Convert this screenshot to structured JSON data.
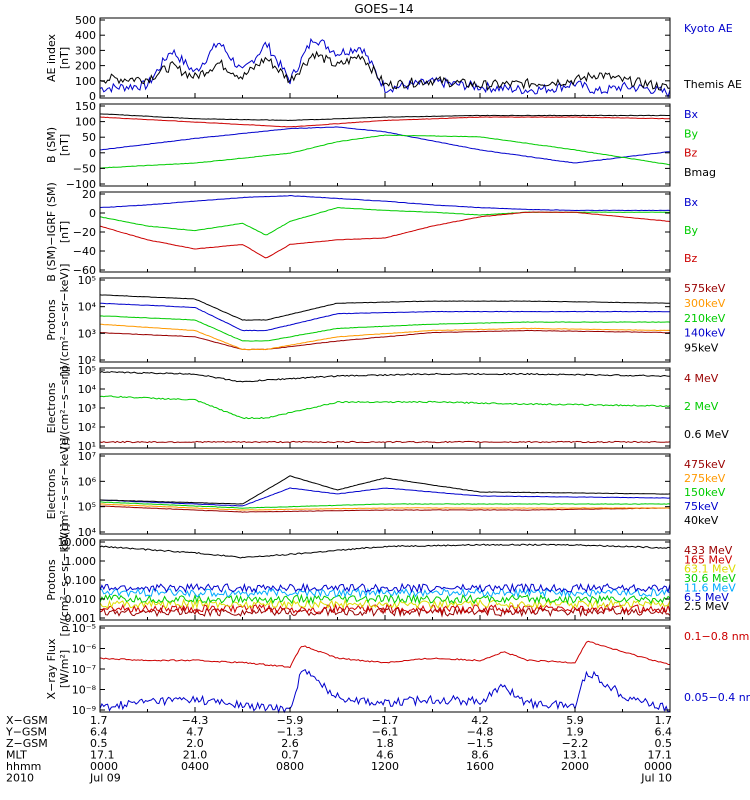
{
  "title": "GOES−14",
  "colors": {
    "black": "#000000",
    "blue": "#0000cc",
    "red": "#cc0000",
    "green": "#00cc00",
    "orange": "#ff9900",
    "cyan": "#00aaff",
    "yellow": "#dddd00",
    "darkred": "#990000"
  },
  "chart_data": [
    {
      "type": "line",
      "panel": "ae",
      "ylabel": "AE index",
      "yunit": "[nT]",
      "ylim": [
        0,
        500
      ],
      "yscale": "linear",
      "yticks": [
        "500",
        "400",
        "300",
        "200",
        "100",
        "0"
      ],
      "series": [
        {
          "name": "Kyoto AE",
          "color": "blue",
          "x": [
            0,
            2,
            3,
            4,
            5,
            6,
            7,
            8,
            9,
            10,
            11,
            12,
            14,
            16,
            18,
            19,
            20,
            21,
            22,
            23,
            24
          ],
          "values": [
            60,
            80,
            300,
            160,
            350,
            160,
            340,
            110,
            380,
            280,
            320,
            60,
            100,
            70,
            50,
            60,
            90,
            40,
            70,
            60,
            30
          ]
        },
        {
          "name": "Themis AE",
          "color": "black",
          "x": [
            0,
            2,
            3,
            4,
            5,
            6,
            7,
            8,
            9,
            10,
            11,
            12,
            14,
            16,
            18,
            19,
            20,
            21,
            22,
            23,
            24
          ],
          "values": [
            120,
            120,
            200,
            130,
            220,
            130,
            250,
            110,
            280,
            200,
            270,
            80,
            110,
            80,
            90,
            100,
            110,
            150,
            110,
            90,
            60
          ]
        }
      ]
    },
    {
      "type": "line",
      "panel": "b_sm",
      "ylabel": "B (SM)",
      "yunit": "[nT]",
      "ylim": [
        -110,
        140
      ],
      "yscale": "linear",
      "yticks": [
        "150",
        "100",
        "50",
        "0",
        "−50",
        "−100"
      ],
      "series": [
        {
          "name": "Bx",
          "color": "blue",
          "x": [
            0,
            4,
            8,
            10,
            12,
            16,
            20,
            24
          ],
          "values": [
            0,
            35,
            65,
            70,
            55,
            0,
            -40,
            -5
          ]
        },
        {
          "name": "By",
          "color": "green",
          "x": [
            0,
            4,
            8,
            10,
            12,
            16,
            20,
            24
          ],
          "values": [
            -55,
            -40,
            -10,
            25,
            45,
            40,
            0,
            -45
          ]
        },
        {
          "name": "Bz",
          "color": "red",
          "x": [
            0,
            4,
            8,
            10,
            12,
            16,
            20,
            24
          ],
          "values": [
            100,
            85,
            70,
            80,
            90,
            100,
            100,
            95
          ]
        },
        {
          "name": "Bmag",
          "color": "black",
          "x": [
            0,
            4,
            8,
            10,
            12,
            16,
            20,
            24
          ],
          "values": [
            110,
            95,
            90,
            95,
            100,
            105,
            105,
            105
          ]
        }
      ]
    },
    {
      "type": "line",
      "panel": "b_igrf",
      "ylabel": "B (SM)−IGRF (SM)",
      "yunit": "[nT]",
      "ylim": [
        -65,
        22
      ],
      "yscale": "linear",
      "yticks": [
        "20",
        "0",
        "−20",
        "−40",
        "−60"
      ],
      "series": [
        {
          "name": "Bx",
          "color": "blue",
          "x": [
            0,
            2,
            4,
            6,
            8,
            10,
            12,
            14,
            16,
            18,
            20,
            22,
            24
          ],
          "values": [
            5,
            8,
            12,
            16,
            18,
            15,
            12,
            8,
            5,
            3,
            2,
            2,
            2
          ]
        },
        {
          "name": "By",
          "color": "green",
          "x": [
            0,
            2,
            4,
            6,
            7,
            8,
            10,
            12,
            14,
            16,
            18,
            20,
            24
          ],
          "values": [
            -5,
            -15,
            -20,
            -12,
            -25,
            -10,
            5,
            2,
            0,
            -3,
            0,
            0,
            0
          ]
        },
        {
          "name": "Bz",
          "color": "red",
          "x": [
            0,
            2,
            4,
            6,
            7,
            8,
            10,
            12,
            14,
            16,
            18,
            20,
            24
          ],
          "values": [
            -15,
            -30,
            -40,
            -35,
            -50,
            -35,
            -30,
            -28,
            -15,
            -5,
            0,
            0,
            -10
          ]
        }
      ]
    },
    {
      "type": "line",
      "panel": "protons_low",
      "ylabel": "Protons",
      "yunit": "[p/(cm²−s−sr−keV)]",
      "ylim": [
        1,
        5
      ],
      "yscale": "log",
      "yticks": [
        "10⁵",
        "10⁴",
        "10³",
        "10²"
      ],
      "series": [
        {
          "name": "575keV",
          "color": "darkred",
          "x": [
            0,
            4,
            6,
            7,
            10,
            14,
            18,
            24
          ],
          "values": [
            2.4,
            2.2,
            1.6,
            1.6,
            2.0,
            2.4,
            2.5,
            2.4
          ]
        },
        {
          "name": "300keV",
          "color": "orange",
          "x": [
            0,
            4,
            6,
            7,
            10,
            14,
            18,
            24
          ],
          "values": [
            2.8,
            2.5,
            1.6,
            1.6,
            2.2,
            2.5,
            2.6,
            2.5
          ]
        },
        {
          "name": "210keV",
          "color": "green",
          "x": [
            0,
            4,
            6,
            7,
            10,
            14,
            18,
            24
          ],
          "values": [
            3.2,
            3.0,
            2.0,
            2.0,
            2.6,
            2.8,
            2.9,
            2.9
          ]
        },
        {
          "name": "140keV",
          "color": "blue",
          "x": [
            0,
            4,
            6,
            7,
            10,
            14,
            18,
            24
          ],
          "values": [
            3.8,
            3.6,
            2.5,
            2.5,
            3.3,
            3.4,
            3.4,
            3.4
          ]
        },
        {
          "name": "95keV",
          "color": "black",
          "x": [
            0,
            4,
            6,
            7,
            10,
            14,
            18,
            24
          ],
          "values": [
            4.2,
            4.0,
            3.0,
            3.0,
            3.8,
            3.9,
            3.9,
            3.8
          ]
        }
      ]
    },
    {
      "type": "line",
      "panel": "electrons_high",
      "ylabel": "Electrons",
      "yunit": "[e/(cm²−s−sr)]",
      "ylim": [
        1,
        5
      ],
      "yscale": "log",
      "yticks": [
        "10⁵",
        "10⁴",
        "10³",
        "10²",
        "10¹"
      ],
      "series": [
        {
          "name": "4 MeV",
          "color": "darkred",
          "x": [
            0,
            24
          ],
          "values": [
            1.3,
            1.3
          ]
        },
        {
          "name": "2 MeV",
          "color": "green",
          "x": [
            0,
            4,
            6,
            7,
            10,
            14,
            18,
            24
          ],
          "values": [
            3.6,
            3.4,
            2.5,
            2.5,
            3.3,
            3.3,
            3.2,
            3.1
          ]
        },
        {
          "name": "0.6 MeV",
          "color": "black",
          "x": [
            0,
            4,
            6,
            7,
            10,
            14,
            18,
            24
          ],
          "values": [
            4.8,
            4.7,
            4.3,
            4.4,
            4.6,
            4.7,
            4.7,
            4.6
          ]
        }
      ]
    },
    {
      "type": "line",
      "panel": "electrons_low",
      "ylabel": "Electrons",
      "yunit": "[e/(cm²−s−sr−keV)]",
      "ylim": [
        3,
        7
      ],
      "yscale": "log",
      "yticks": [
        "10⁷",
        "10⁶",
        "10⁵",
        "10⁴"
      ],
      "series": [
        {
          "name": "475keV",
          "color": "darkred",
          "x": [
            0,
            6,
            12,
            18,
            24
          ],
          "values": [
            4.4,
            4.1,
            4.2,
            4.2,
            4.3
          ]
        },
        {
          "name": "275keV",
          "color": "orange",
          "x": [
            0,
            6,
            12,
            18,
            24
          ],
          "values": [
            4.5,
            4.2,
            4.3,
            4.3,
            4.3
          ]
        },
        {
          "name": "150keV",
          "color": "green",
          "x": [
            0,
            6,
            12,
            18,
            24
          ],
          "values": [
            4.6,
            4.3,
            4.5,
            4.5,
            4.5
          ]
        },
        {
          "name": "75keV",
          "color": "blue",
          "x": [
            0,
            6,
            8,
            10,
            12,
            16,
            24
          ],
          "values": [
            4.7,
            4.4,
            5.3,
            5.0,
            5.3,
            4.9,
            4.8
          ]
        },
        {
          "name": "40keV",
          "color": "black",
          "x": [
            0,
            6,
            8,
            10,
            12,
            16,
            24
          ],
          "values": [
            4.7,
            4.5,
            5.9,
            5.2,
            5.8,
            5.1,
            5.0
          ]
        }
      ]
    },
    {
      "type": "line",
      "panel": "protons_high",
      "ylabel": "Protons",
      "yunit": "[p/(cm²−s−sr−keV)]",
      "ylim": [
        -3,
        2
      ],
      "yscale": "log",
      "yticks": [
        "10.000",
        "1.000",
        "0.100",
        "0.010",
        "0.001"
      ],
      "series": [
        {
          "name": "433 MeV",
          "color": "darkred",
          "x": [
            0,
            24
          ],
          "values": [
            -2.5,
            -2.5
          ]
        },
        {
          "name": "165 MeV",
          "color": "red",
          "x": [
            0,
            24
          ],
          "values": [
            -2.3,
            -2.3
          ]
        },
        {
          "name": "63.1 MeV",
          "color": "yellow",
          "x": [
            0,
            24
          ],
          "values": [
            -2.0,
            -2.0
          ]
        },
        {
          "name": "30.6 MeV",
          "color": "green",
          "x": [
            0,
            24
          ],
          "values": [
            -1.7,
            -1.7
          ]
        },
        {
          "name": "11.6 MeV",
          "color": "cyan",
          "x": [
            0,
            24
          ],
          "values": [
            -1.3,
            -1.3
          ]
        },
        {
          "name": "6.5 MeV",
          "color": "blue",
          "x": [
            0,
            24
          ],
          "values": [
            -1.0,
            -1.0
          ]
        },
        {
          "name": "2.5 MeV",
          "color": "black",
          "x": [
            0,
            4,
            6,
            8,
            12,
            16,
            20,
            24
          ],
          "values": [
            1.6,
            1.2,
            0.9,
            1.1,
            1.6,
            1.7,
            1.7,
            1.5
          ]
        }
      ]
    },
    {
      "type": "line",
      "panel": "xray",
      "ylabel": "X−ray Flux",
      "yunit": "[W/m²]",
      "ylim": [
        -9,
        -5
      ],
      "yscale": "log",
      "yticks": [
        "10⁻⁵",
        "10⁻⁶",
        "10⁻⁷",
        "10⁻⁸",
        "10⁻⁹"
      ],
      "series": [
        {
          "name": "0.1−0.8 nm",
          "color": "red",
          "x": [
            0,
            2,
            4,
            6,
            8,
            8.5,
            10,
            12,
            14,
            16,
            17,
            18,
            20,
            20.5,
            22,
            24
          ],
          "values": [
            -6.5,
            -6.6,
            -6.6,
            -6.7,
            -6.9,
            -5.9,
            -6.5,
            -6.7,
            -6.5,
            -6.6,
            -6.2,
            -6.6,
            -6.7,
            -5.7,
            -6.2,
            -6.8
          ]
        },
        {
          "name": "0.05−0.4 nm",
          "color": "blue",
          "x": [
            0,
            2,
            4,
            6,
            8,
            8.5,
            10,
            12,
            14,
            16,
            17,
            18,
            20,
            20.5,
            22,
            24
          ],
          "values": [
            -8.8,
            -8.5,
            -8.4,
            -8.7,
            -8.9,
            -7.0,
            -8.3,
            -8.6,
            -8.4,
            -8.5,
            -7.8,
            -8.6,
            -8.7,
            -7.1,
            -8.2,
            -8.9
          ]
        }
      ]
    }
  ],
  "xaxis": {
    "row_labels": [
      "X−GSM",
      "Y−GSM",
      "Z−GSM",
      "MLT",
      "hhmm",
      "2010"
    ],
    "columns": [
      {
        "hour": 0,
        "values": [
          "1.7",
          "6.4",
          "0.5",
          "17.1",
          "0000",
          "Jul 09"
        ]
      },
      {
        "hour": 4,
        "values": [
          "−4.3",
          "4.7",
          "2.0",
          "21.0",
          "0400",
          ""
        ]
      },
      {
        "hour": 8,
        "values": [
          "−5.9",
          "−1.3",
          "2.6",
          "0.7",
          "0800",
          ""
        ]
      },
      {
        "hour": 12,
        "values": [
          "−1.7",
          "−6.1",
          "1.8",
          "4.6",
          "1200",
          ""
        ]
      },
      {
        "hour": 16,
        "values": [
          "4.2",
          "−4.8",
          "−1.5",
          "8.6",
          "1600",
          ""
        ]
      },
      {
        "hour": 20,
        "values": [
          "5.9",
          "1.9",
          "−2.2",
          "13.1",
          "2000",
          ""
        ]
      },
      {
        "hour": 24,
        "values": [
          "1.7",
          "6.4",
          "0.5",
          "17.1",
          "0000",
          "Jul 10"
        ]
      }
    ]
  }
}
